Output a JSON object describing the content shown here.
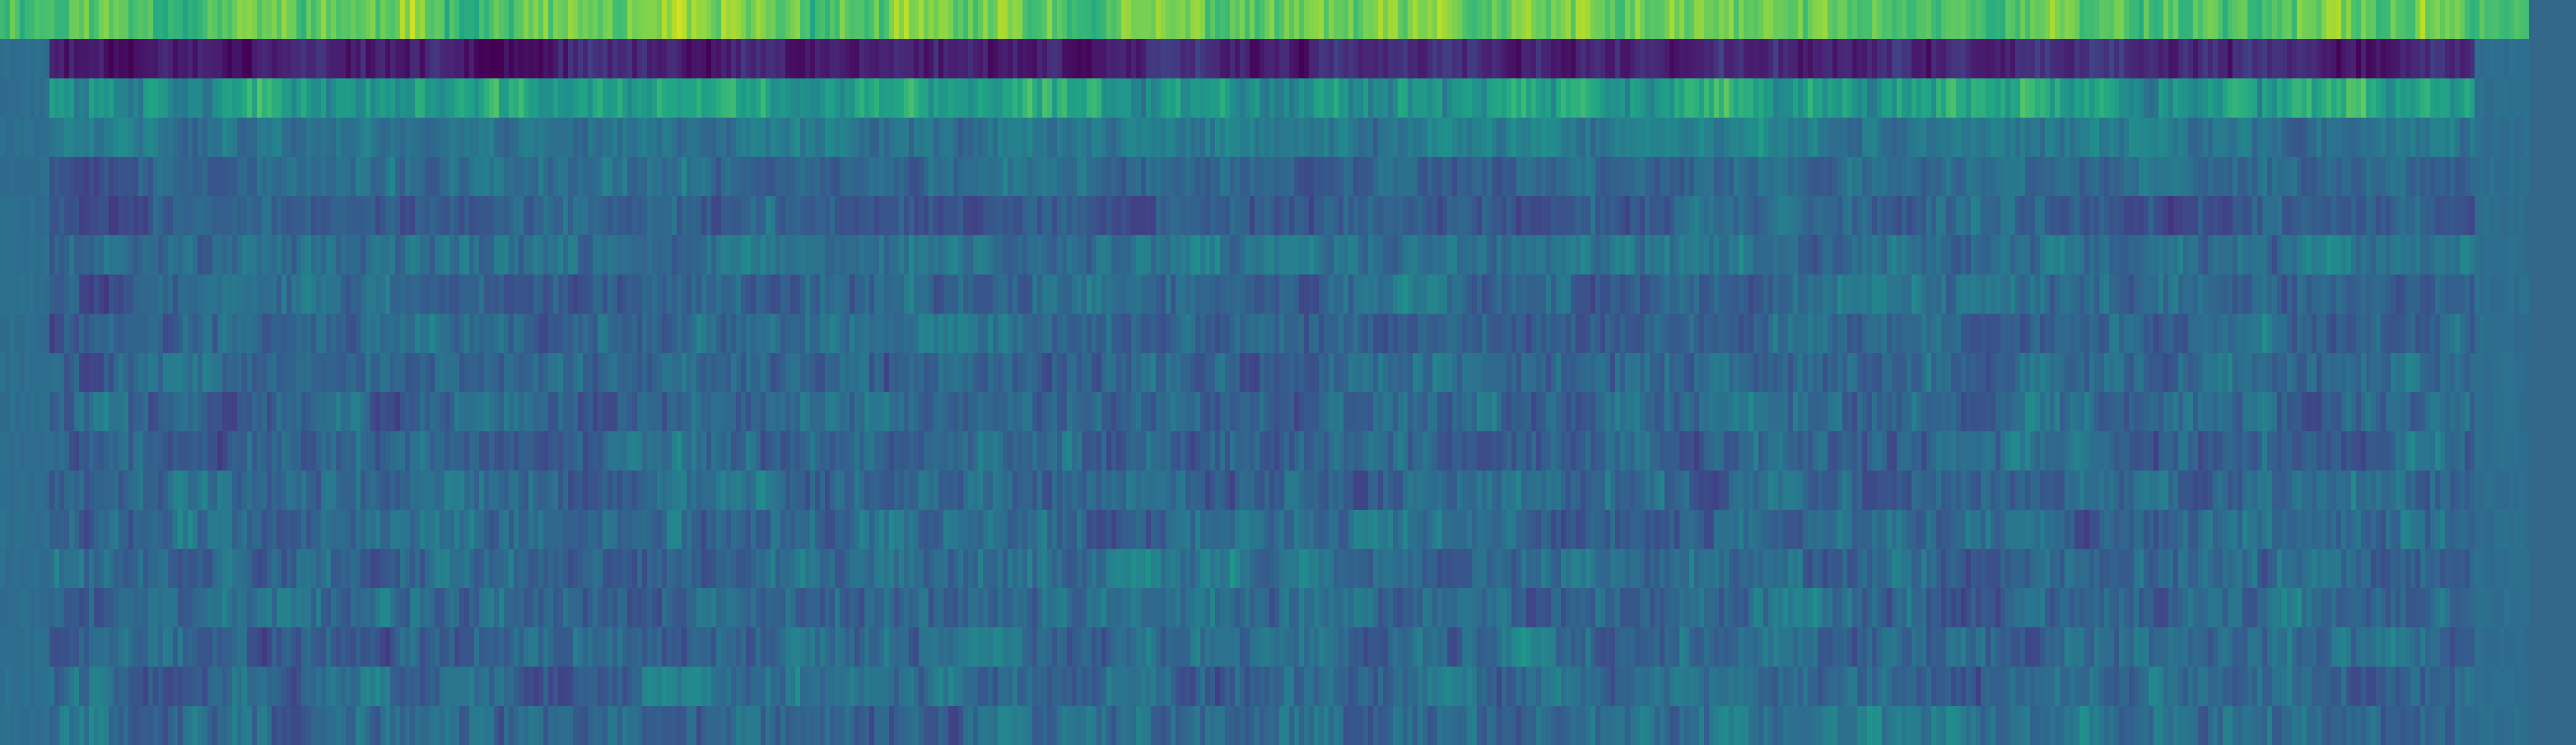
{
  "chart_data": {
    "type": "heatmap",
    "colormap": "viridis",
    "background_color": "#33688a",
    "n_rows": 19,
    "n_cols": 512,
    "value_range": [
      0,
      1
    ],
    "title": "",
    "xlabel": "",
    "ylabel": "",
    "tick_labels": [],
    "legend": null,
    "grid": false,
    "rows": [
      {
        "row": 0,
        "base": 0.74,
        "amp": 0.14,
        "seed": 11,
        "hot_from": 0,
        "hot_to": 511,
        "note_level": "bright"
      },
      {
        "row": 1,
        "base": 0.1,
        "amp": 0.09,
        "seed": 23,
        "hot_from": 10,
        "hot_to": 500,
        "note_level": "dark"
      },
      {
        "row": 2,
        "base": 0.55,
        "amp": 0.15,
        "seed": 37,
        "hot_from": 10,
        "hot_to": 500,
        "note_level": "bright-mid"
      },
      {
        "row": 3,
        "base": 0.4,
        "amp": 0.1,
        "seed": 41,
        "hot_from": 10,
        "hot_to": 500,
        "note_level": "mid"
      },
      {
        "row": 4,
        "base": 0.34,
        "amp": 0.1,
        "seed": 53,
        "hot_from": 10,
        "hot_to": 500,
        "note_level": "mid-dark"
      },
      {
        "row": 5,
        "base": 0.3,
        "amp": 0.1,
        "seed": 67,
        "hot_from": 10,
        "hot_to": 500,
        "note_level": "mid-dark"
      },
      {
        "row": 6,
        "base": 0.36,
        "amp": 0.11,
        "seed": 71,
        "hot_from": 10,
        "hot_to": 500,
        "note_level": "mid"
      },
      {
        "row": 7,
        "base": 0.33,
        "amp": 0.11,
        "seed": 83,
        "hot_from": 10,
        "hot_to": 500,
        "note_level": "mid"
      },
      {
        "row": 8,
        "base": 0.31,
        "amp": 0.11,
        "seed": 97,
        "hot_from": 10,
        "hot_to": 500,
        "note_level": "mid"
      },
      {
        "row": 9,
        "base": 0.34,
        "amp": 0.12,
        "seed": 101,
        "hot_from": 10,
        "hot_to": 500,
        "note_level": "mid"
      },
      {
        "row": 10,
        "base": 0.33,
        "amp": 0.12,
        "seed": 113,
        "hot_from": 10,
        "hot_to": 500,
        "note_level": "mid"
      },
      {
        "row": 11,
        "base": 0.32,
        "amp": 0.12,
        "seed": 127,
        "hot_from": 10,
        "hot_to": 500,
        "note_level": "mid"
      },
      {
        "row": 12,
        "base": 0.34,
        "amp": 0.12,
        "seed": 131,
        "hot_from": 10,
        "hot_to": 500,
        "note_level": "mid"
      },
      {
        "row": 13,
        "base": 0.35,
        "amp": 0.12,
        "seed": 139,
        "hot_from": 10,
        "hot_to": 500,
        "note_level": "mid"
      },
      {
        "row": 14,
        "base": 0.34,
        "amp": 0.12,
        "seed": 149,
        "hot_from": 10,
        "hot_to": 500,
        "note_level": "mid"
      },
      {
        "row": 15,
        "base": 0.35,
        "amp": 0.12,
        "seed": 157,
        "hot_from": 10,
        "hot_to": 500,
        "note_level": "mid"
      },
      {
        "row": 16,
        "base": 0.33,
        "amp": 0.12,
        "seed": 163,
        "hot_from": 10,
        "hot_to": 500,
        "note_level": "mid"
      },
      {
        "row": 17,
        "base": 0.34,
        "amp": 0.12,
        "seed": 173,
        "hot_from": 10,
        "hot_to": 500,
        "note_level": "mid"
      },
      {
        "row": 18,
        "base": 0.35,
        "amp": 0.12,
        "seed": 181,
        "hot_from": 10,
        "hot_to": 500,
        "note_level": "mid"
      }
    ],
    "edge_value": 0.36
  }
}
